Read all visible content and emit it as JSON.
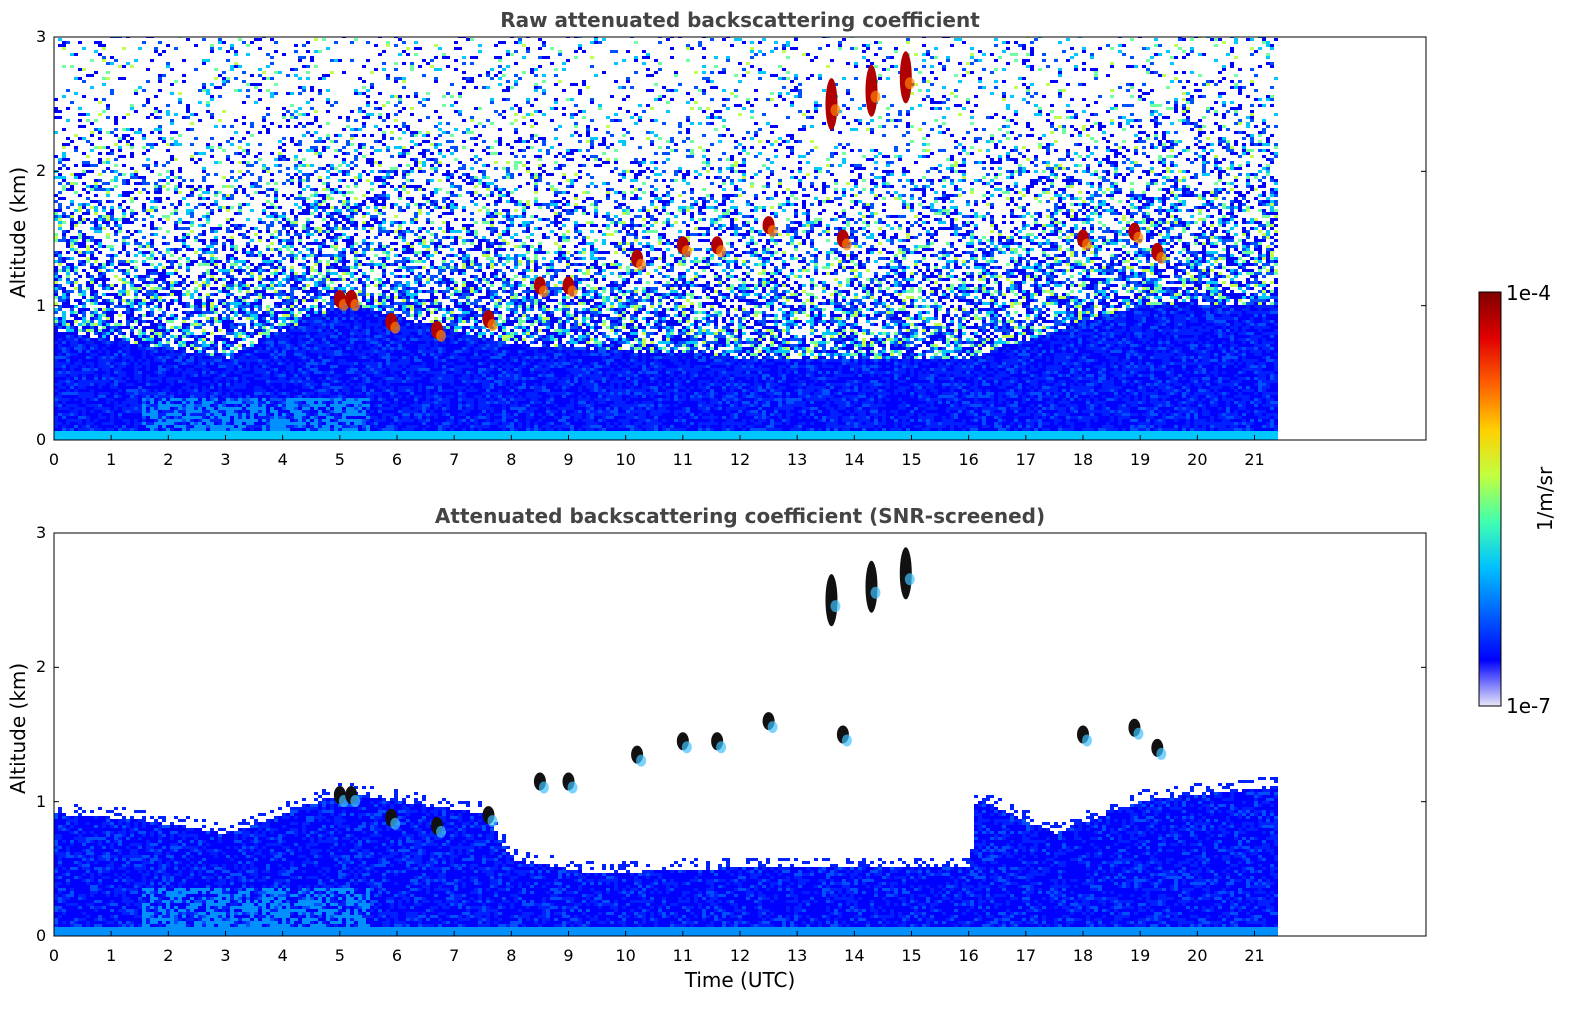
{
  "chart_data": [
    {
      "type": "heatmap",
      "title": "Raw attenuated backscattering coefficient",
      "xlabel": "",
      "ylabel": "Altitude (km)",
      "xlim": [
        0,
        24
      ],
      "ylim": [
        0,
        3
      ],
      "xticks": [
        "0",
        "1",
        "2",
        "3",
        "4",
        "5",
        "6",
        "7",
        "8",
        "9",
        "10",
        "11",
        "12",
        "13",
        "14",
        "15",
        "16",
        "17",
        "18",
        "19",
        "20",
        "21"
      ],
      "yticks": [
        "0",
        "1",
        "2",
        "3"
      ],
      "data_extent_hours": [
        0,
        21.45
      ],
      "description_values": {
        "boundary_layer_top_km": [
          [
            0,
            0.8
          ],
          [
            3,
            0.6
          ],
          [
            5,
            1.0
          ],
          [
            8,
            0.7
          ],
          [
            12,
            0.6
          ],
          [
            16,
            0.6
          ],
          [
            19,
            1.0
          ],
          [
            21.4,
            1.0
          ]
        ],
        "cloud_events": [
          {
            "t": 5.0,
            "z": 1.05
          },
          {
            "t": 5.2,
            "z": 1.05
          },
          {
            "t": 5.9,
            "z": 0.88
          },
          {
            "t": 6.7,
            "z": 0.82
          },
          {
            "t": 7.6,
            "z": 0.9
          },
          {
            "t": 8.5,
            "z": 1.15
          },
          {
            "t": 9.0,
            "z": 1.15
          },
          {
            "t": 10.2,
            "z": 1.35
          },
          {
            "t": 11.0,
            "z": 1.45
          },
          {
            "t": 11.6,
            "z": 1.45
          },
          {
            "t": 12.5,
            "z": 1.6
          },
          {
            "t": 13.6,
            "z": 2.5
          },
          {
            "t": 13.8,
            "z": 1.5
          },
          {
            "t": 14.3,
            "z": 2.6
          },
          {
            "t": 14.9,
            "z": 2.7
          },
          {
            "t": 18.0,
            "z": 1.5
          },
          {
            "t": 18.9,
            "z": 1.55
          },
          {
            "t": 19.3,
            "z": 1.4
          }
        ]
      }
    },
    {
      "type": "heatmap",
      "title": "Attenuated backscattering coefficient (SNR-screened)",
      "xlabel": "Time (UTC)",
      "ylabel": "Altitude (km)",
      "xlim": [
        0,
        24
      ],
      "ylim": [
        0,
        3
      ],
      "xticks": [
        "0",
        "1",
        "2",
        "3",
        "4",
        "5",
        "6",
        "7",
        "8",
        "9",
        "10",
        "11",
        "12",
        "13",
        "14",
        "15",
        "16",
        "17",
        "18",
        "19",
        "20",
        "21"
      ],
      "yticks": [
        "0",
        "1",
        "2",
        "3"
      ],
      "data_extent_hours": [
        0,
        21.45
      ],
      "description_values": {
        "screened_top_km": [
          [
            0,
            0.9
          ],
          [
            1.5,
            0.85
          ],
          [
            3,
            0.75
          ],
          [
            4,
            0.9
          ],
          [
            5,
            1.05
          ],
          [
            7.5,
            0.9
          ],
          [
            8,
            0.55
          ],
          [
            9.5,
            0.45
          ],
          [
            12,
            0.5
          ],
          [
            16,
            0.5
          ],
          [
            16.1,
            1.0
          ],
          [
            17.5,
            0.75
          ],
          [
            19,
            1.0
          ],
          [
            21.4,
            1.1
          ]
        ]
      }
    }
  ],
  "colorbar": {
    "label": "1/m/sr",
    "max_label": "1e-4",
    "min_label": "1e-7",
    "scale": "log",
    "range": [
      1e-07,
      0.0001
    ],
    "colormap": "jet",
    "colors": [
      "#e8e8f8",
      "#0000ff",
      "#0060ff",
      "#00c0ff",
      "#40ffb0",
      "#c0ff40",
      "#ffd000",
      "#ff6000",
      "#e00000",
      "#800000"
    ]
  }
}
